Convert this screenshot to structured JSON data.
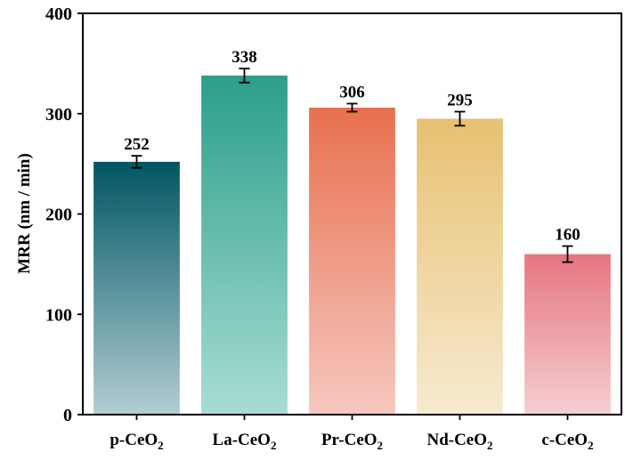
{
  "chart_data": {
    "type": "bar",
    "title": "",
    "xlabel": "",
    "ylabel": "MRR (nm / min)",
    "ylim": [
      0,
      400
    ],
    "yticks": [
      0,
      100,
      200,
      300,
      400
    ],
    "categories": [
      {
        "base": "p-CeO",
        "sub": "2"
      },
      {
        "base": "La-CeO",
        "sub": "2"
      },
      {
        "base": "Pr-CeO",
        "sub": "2"
      },
      {
        "base": "Nd-CeO",
        "sub": "2"
      },
      {
        "base": "c-CeO",
        "sub": "2"
      }
    ],
    "values": [
      252,
      338,
      306,
      295,
      160
    ],
    "errors": [
      6,
      7,
      4,
      7,
      8
    ],
    "value_labels": [
      "252",
      "338",
      "306",
      "295",
      "160"
    ],
    "colors": [
      {
        "top": "#005663",
        "bottom": "#b2cdd3"
      },
      {
        "top": "#2b9e8a",
        "bottom": "#a8ddd3"
      },
      {
        "top": "#e8704f",
        "bottom": "#f6c8c0"
      },
      {
        "top": "#e7c171",
        "bottom": "#f7ead0"
      },
      {
        "top": "#e6757f",
        "bottom": "#f5cfd2"
      }
    ],
    "grid": false,
    "legend": "none"
  }
}
